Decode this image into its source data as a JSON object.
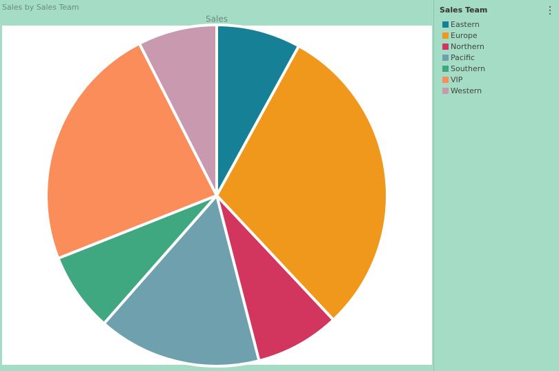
{
  "visual_title": "Sales by Sales Team",
  "chart_data": {
    "type": "pie",
    "title": "Sales",
    "legend_title": "Sales Team",
    "legend": "right",
    "categories": [
      "Eastern",
      "Europe",
      "Northern",
      "Pacific",
      "Southern",
      "VIP",
      "Western"
    ],
    "values": [
      8,
      30,
      8,
      15.5,
      7.5,
      23.5,
      7.5
    ],
    "colors": [
      "#168097",
      "#f0981c",
      "#d2355e",
      "#6ea1ad",
      "#40a880",
      "#fb8d5a",
      "#c99aaf"
    ]
  }
}
